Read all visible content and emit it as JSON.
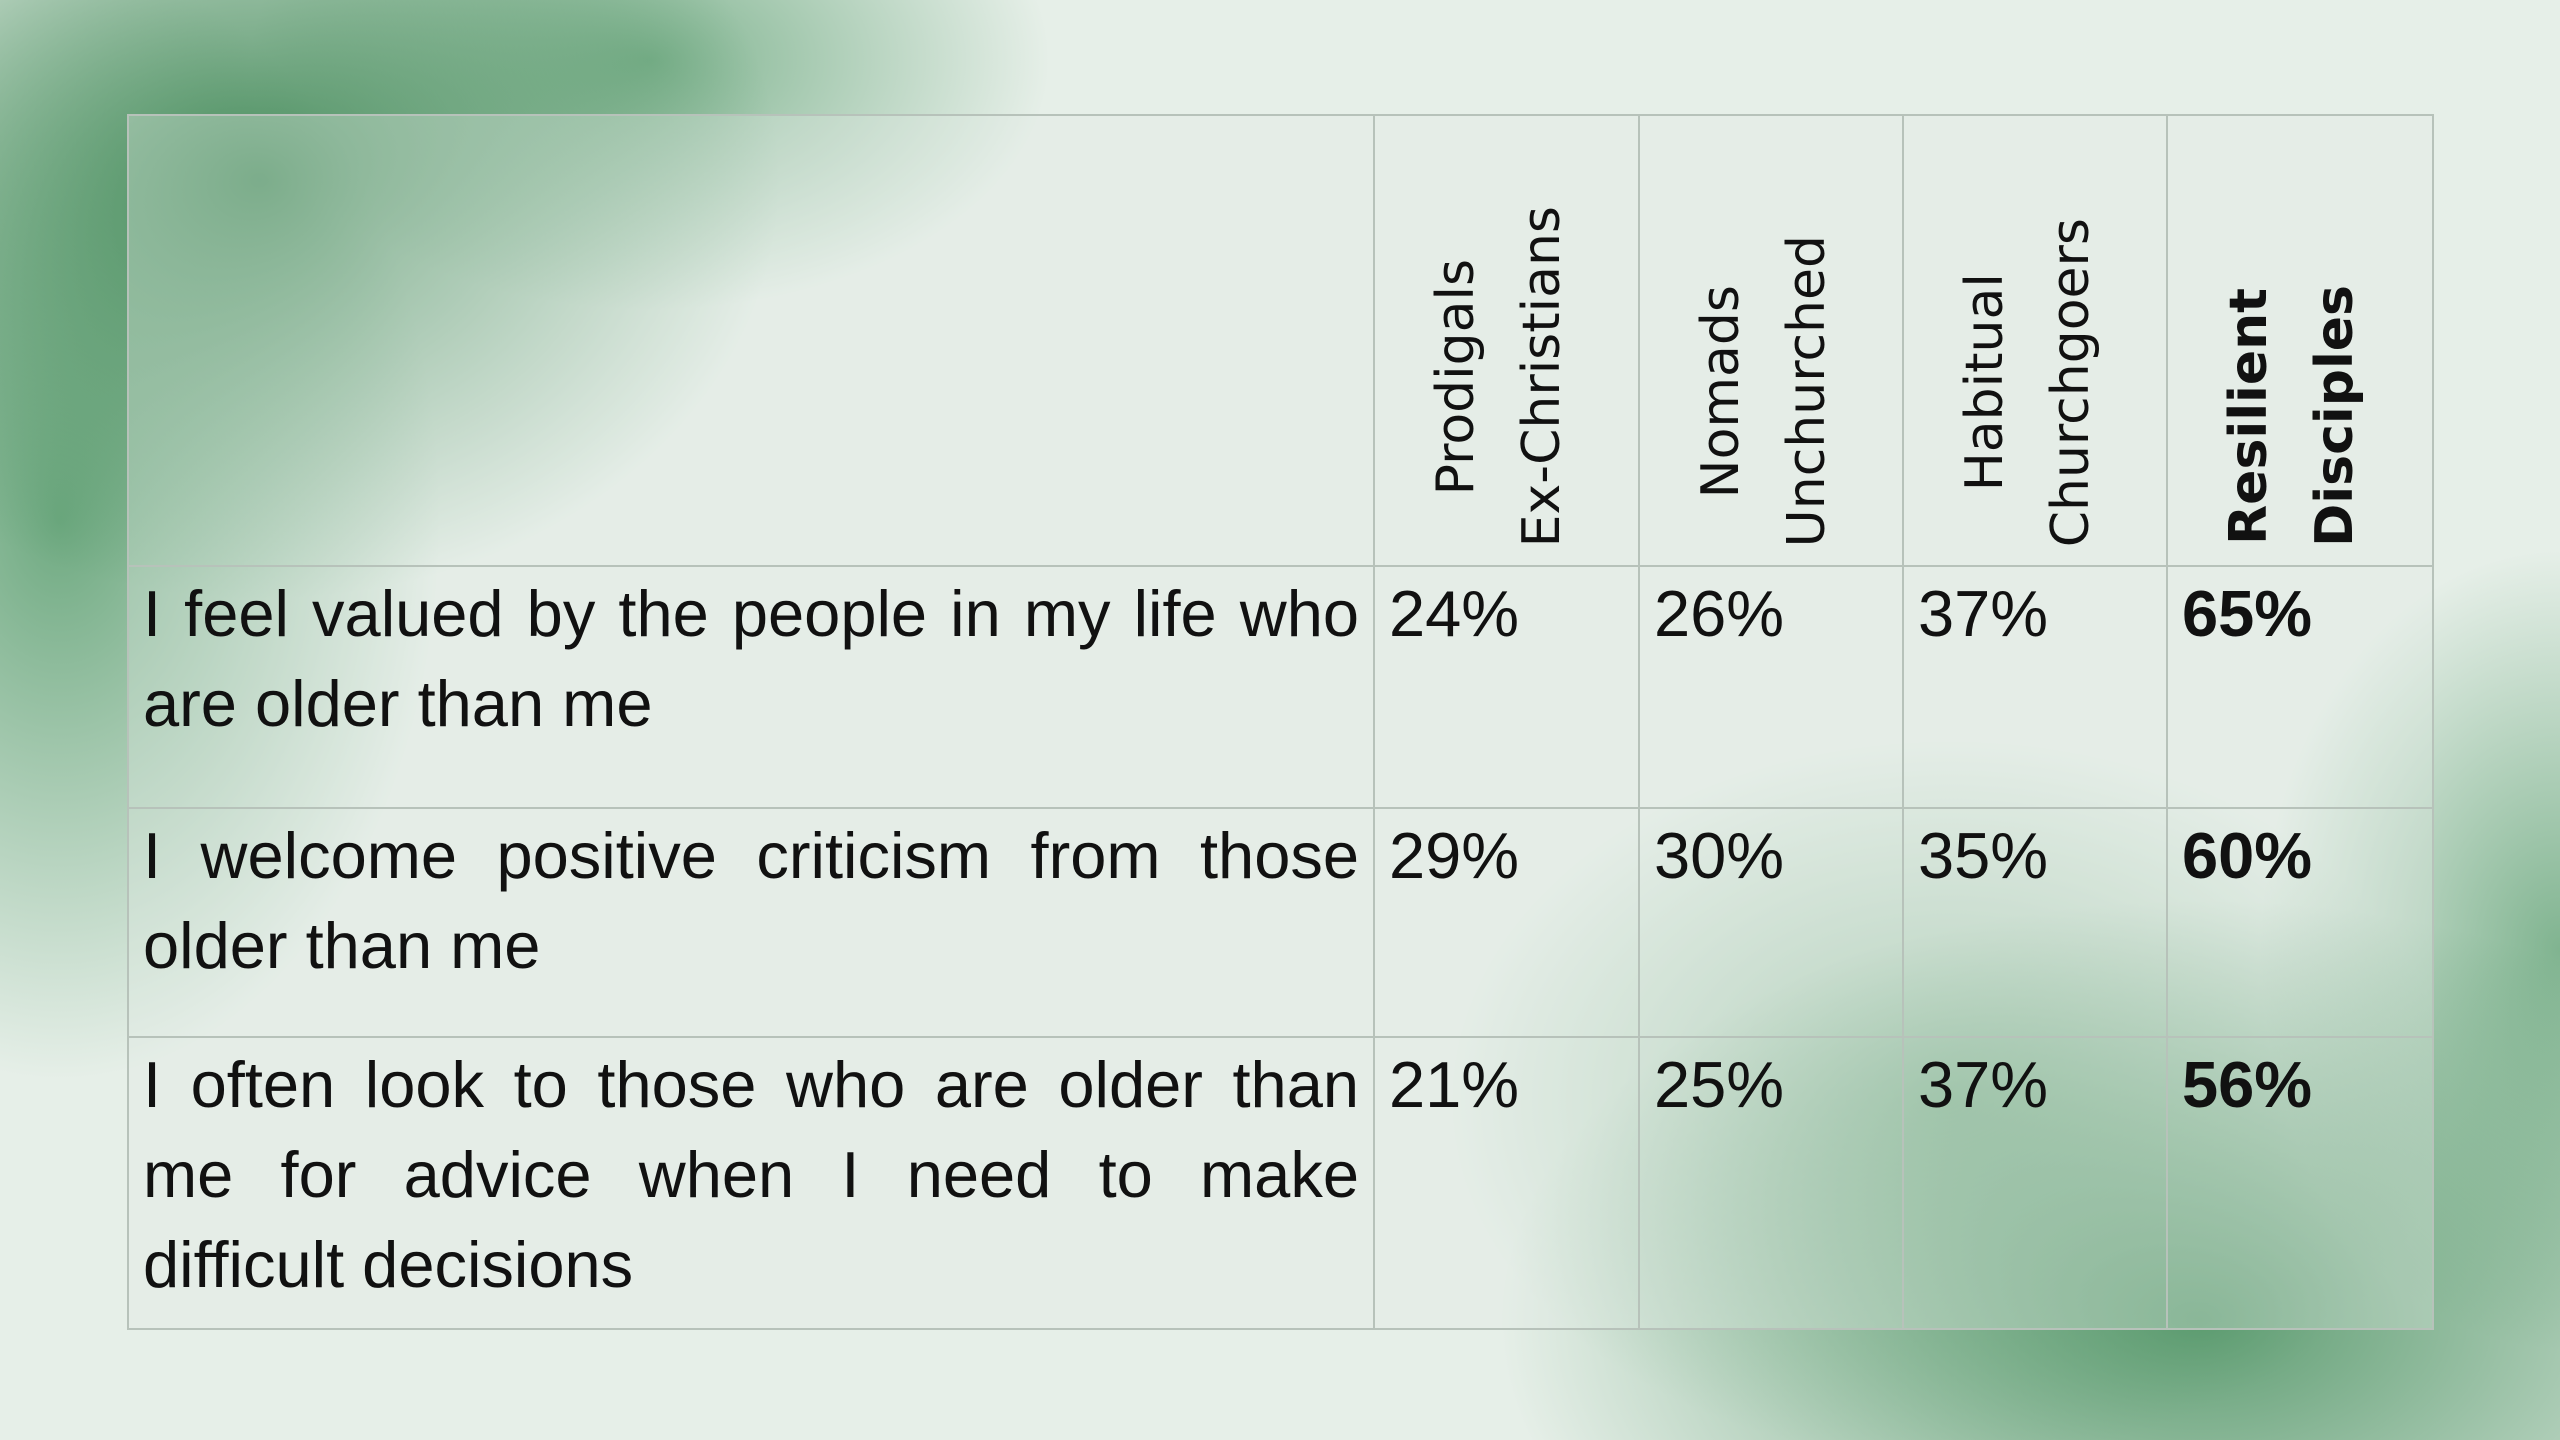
{
  "table": {
    "headers": [
      [
        "Prodigals",
        "Ex-Christians"
      ],
      [
        "Nomads",
        "Unchurched"
      ],
      [
        "Habitual",
        "Churchgoers"
      ],
      [
        "Resilient",
        "Disciples"
      ]
    ],
    "rows": [
      [
        "I feel valued by the people in my life who are older than me",
        "24%",
        "26%",
        "37%",
        "65%"
      ],
      [
        "I welcome positive criticism from those older than me",
        "29%",
        "30%",
        "35%",
        "60%"
      ],
      [
        "I often look to those who are older than me for advice when I need to make difficult decisions",
        "21%",
        "25%",
        "37%",
        "56%"
      ]
    ]
  }
}
